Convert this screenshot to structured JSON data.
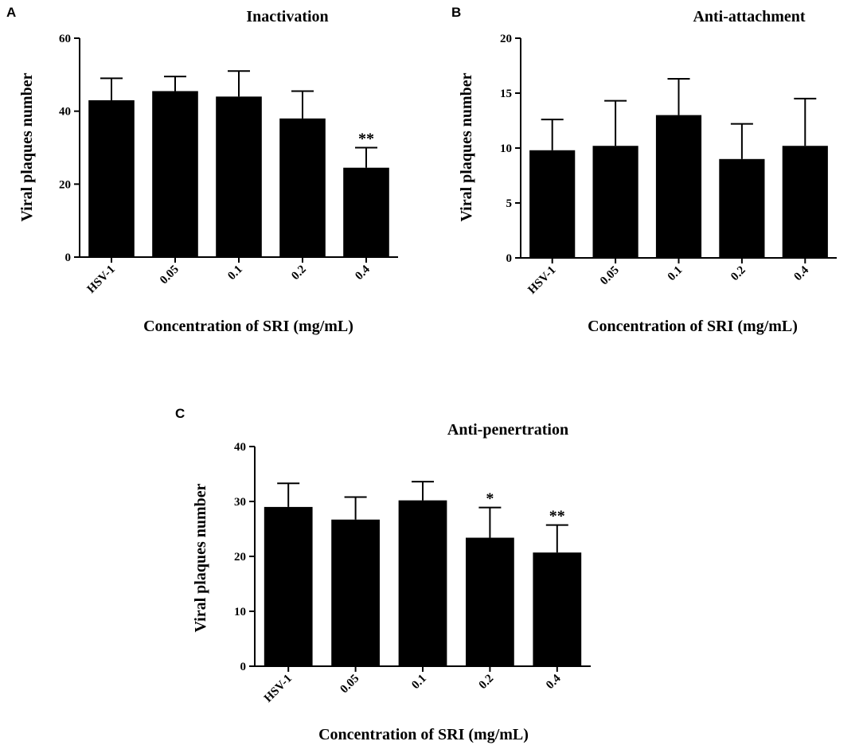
{
  "chart_data": [
    {
      "panel": "A",
      "type": "bar",
      "title": "Inactivation",
      "xlabel": "Concentration of SRI (mg/mL)",
      "ylabel": "Viral plaques number",
      "ylim": [
        0,
        60
      ],
      "yticks": [
        0,
        20,
        40,
        60
      ],
      "categories": [
        "HSV-1",
        "0.05",
        "0.1",
        "0.2",
        "0.4"
      ],
      "values": [
        43,
        45.5,
        44,
        38,
        24.5
      ],
      "errors": [
        6,
        4,
        7,
        7.5,
        5.5
      ],
      "significance": [
        "",
        "",
        "",
        "",
        "**"
      ],
      "color": "#000000"
    },
    {
      "panel": "B",
      "type": "bar",
      "title": "Anti-attachment",
      "xlabel": "Concentration of SRI (mg/mL)",
      "ylabel": "Viral plaques number",
      "ylim": [
        0,
        20
      ],
      "yticks": [
        0,
        5,
        10,
        15,
        20
      ],
      "categories": [
        "HSV-1",
        "0.05",
        "0.1",
        "0.2",
        "0.4"
      ],
      "values": [
        9.8,
        10.2,
        13,
        9,
        10.2
      ],
      "errors": [
        2.8,
        4.1,
        3.3,
        3.2,
        4.3
      ],
      "significance": [
        "",
        "",
        "",
        "",
        ""
      ],
      "color": "#000000"
    },
    {
      "panel": "C",
      "type": "bar",
      "title": "Anti-penertration",
      "xlabel": "Concentration of SRI (mg/mL)",
      "ylabel": "Viral plaques number",
      "ylim": [
        0,
        40
      ],
      "yticks": [
        0,
        10,
        20,
        30,
        40
      ],
      "categories": [
        "HSV-1",
        "0.05",
        "0.1",
        "0.2",
        "0.4"
      ],
      "values": [
        29,
        26.7,
        30.2,
        23.4,
        20.7
      ],
      "errors": [
        4.3,
        4.1,
        3.4,
        5.5,
        5
      ],
      "significance": [
        "",
        "",
        "",
        "*",
        "**"
      ],
      "color": "#000000"
    }
  ]
}
